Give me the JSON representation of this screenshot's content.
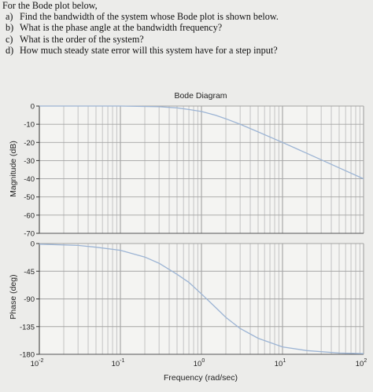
{
  "questions": {
    "intro": "For the Bode plot below,",
    "items": [
      {
        "letter": "a)",
        "text": "Find the bandwidth of the system whose Bode plot is shown below."
      },
      {
        "letter": "b)",
        "text": "What is the phase angle at the bandwidth frequency?"
      },
      {
        "letter": "c)",
        "text": "What is the order of the system?"
      },
      {
        "letter": "d)",
        "text": "How much steady state error will this system have for a step input?"
      }
    ]
  },
  "chart_data": {
    "type": "line",
    "title": "Bode Diagram",
    "xlabel": "Frequency (rad/sec)",
    "xscale": "log",
    "xlim": [
      0.01,
      100
    ],
    "x_tick_labels": [
      {
        "value": 0.01,
        "base": "10",
        "exp": "-2"
      },
      {
        "value": 0.1,
        "base": "10",
        "exp": "-1"
      },
      {
        "value": 1,
        "base": "10",
        "exp": "0"
      },
      {
        "value": 10,
        "base": "10",
        "exp": "1"
      },
      {
        "value": 100,
        "base": "10",
        "exp": "2"
      }
    ],
    "grid": true,
    "color": "#9cb4d4",
    "panels": [
      {
        "ylabel": "Magnitude (dB)",
        "ylim": [
          -70,
          0
        ],
        "yticks": [
          0,
          -10,
          -20,
          -30,
          -40,
          -50,
          -60,
          -70
        ],
        "series": {
          "x": [
            0.01,
            0.1,
            0.3,
            0.5,
            0.7,
            1,
            1.5,
            2,
            3,
            5,
            10,
            20,
            50,
            100
          ],
          "y": [
            0,
            0,
            -0.4,
            -1,
            -1.9,
            -3,
            -5.1,
            -7,
            -10,
            -14.2,
            -20,
            -26,
            -34,
            -40
          ]
        }
      },
      {
        "ylabel": "Phase (deg)",
        "ylim": [
          -180,
          0
        ],
        "yticks": [
          0,
          -45,
          -90,
          -135,
          -180
        ],
        "series": {
          "x": [
            0.01,
            0.03,
            0.05,
            0.1,
            0.2,
            0.3,
            0.5,
            0.7,
            1,
            1.5,
            2,
            3,
            5,
            10,
            20,
            50,
            100
          ],
          "y": [
            -1,
            -3,
            -6,
            -11,
            -22,
            -32,
            -50,
            -63,
            -82,
            -104,
            -120,
            -138,
            -154,
            -168,
            -174,
            -178,
            -179
          ]
        }
      }
    ]
  }
}
